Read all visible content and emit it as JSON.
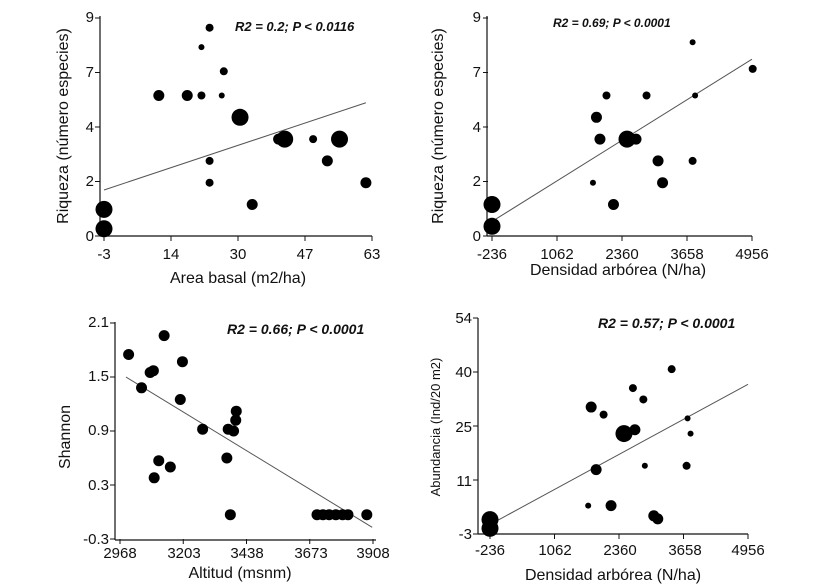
{
  "chart_data": [
    {
      "type": "scatter",
      "xlabel": "Area basal (m2/ha)",
      "ylabel": "Riqueza (número especies)",
      "annotation": "R2 = 0.2; P < 0.0116",
      "xlim": [
        -3,
        63
      ],
      "ylim": [
        0,
        9
      ],
      "xticks": [
        "-3",
        "14",
        "30",
        "47",
        "63"
      ],
      "yticks": [
        "0",
        "2",
        "4",
        "7",
        "9"
      ],
      "points": [
        {
          "x": -3,
          "y": 0.3,
          "size": "large"
        },
        {
          "x": -3,
          "y": 1.1,
          "size": "large"
        },
        {
          "x": 10.5,
          "y": 5.8,
          "size": "medium"
        },
        {
          "x": 17.5,
          "y": 5.8,
          "size": "medium"
        },
        {
          "x": 21,
          "y": 5.8,
          "size": "small"
        },
        {
          "x": 21,
          "y": 7.8,
          "size": "tiny"
        },
        {
          "x": 23,
          "y": 8.6,
          "size": "small"
        },
        {
          "x": 23,
          "y": 3.1,
          "size": "small"
        },
        {
          "x": 23,
          "y": 2.2,
          "size": "small"
        },
        {
          "x": 26,
          "y": 5.8,
          "size": "tiny"
        },
        {
          "x": 26.5,
          "y": 6.8,
          "size": "small"
        },
        {
          "x": 30.5,
          "y": 4.9,
          "size": "large"
        },
        {
          "x": 33.5,
          "y": 1.3,
          "size": "medium"
        },
        {
          "x": 40,
          "y": 4.0,
          "size": "medium"
        },
        {
          "x": 41.5,
          "y": 4.0,
          "size": "large"
        },
        {
          "x": 48.5,
          "y": 4.0,
          "size": "small"
        },
        {
          "x": 52,
          "y": 3.1,
          "size": "medium"
        },
        {
          "x": 55,
          "y": 4.0,
          "size": "large"
        },
        {
          "x": 61.5,
          "y": 2.2,
          "size": "medium"
        }
      ],
      "fit_line": {
        "x": [
          -3,
          61.5
        ],
        "y": [
          1.9,
          5.5
        ]
      }
    },
    {
      "type": "scatter",
      "xlabel": "Densidad arbórea (N/ha)",
      "ylabel": "Riqueza (número especies)",
      "annotation": "R2 = 0.69; P < 0.0001",
      "xlim": [
        -236,
        4956
      ],
      "ylim": [
        0,
        9
      ],
      "xticks": [
        "-236",
        "1062",
        "2360",
        "3658",
        "4956"
      ],
      "yticks": [
        "0",
        "2",
        "4",
        "7",
        "9"
      ],
      "points": [
        {
          "x": -236,
          "y": 0.4,
          "size": "large"
        },
        {
          "x": -236,
          "y": 1.3,
          "size": "large"
        },
        {
          "x": 1780,
          "y": 2.2,
          "size": "tiny"
        },
        {
          "x": 1850,
          "y": 4.9,
          "size": "medium"
        },
        {
          "x": 1920,
          "y": 4.0,
          "size": "medium"
        },
        {
          "x": 2050,
          "y": 5.8,
          "size": "small"
        },
        {
          "x": 2190,
          "y": 1.3,
          "size": "medium"
        },
        {
          "x": 2460,
          "y": 4.0,
          "size": "large"
        },
        {
          "x": 2640,
          "y": 4.0,
          "size": "medium"
        },
        {
          "x": 2850,
          "y": 5.8,
          "size": "small"
        },
        {
          "x": 3080,
          "y": 3.1,
          "size": "medium"
        },
        {
          "x": 3170,
          "y": 2.2,
          "size": "medium"
        },
        {
          "x": 3770,
          "y": 8.0,
          "size": "tiny"
        },
        {
          "x": 3770,
          "y": 3.1,
          "size": "small"
        },
        {
          "x": 3820,
          "y": 5.8,
          "size": "tiny"
        },
        {
          "x": 4970,
          "y": 6.9,
          "size": "small"
        }
      ],
      "fit_line": {
        "x": [
          -236,
          4956
        ],
        "y": [
          0.6,
          7.3
        ]
      }
    },
    {
      "type": "scatter",
      "xlabel": "Altitud (msnm)",
      "ylabel": "Shannon",
      "annotation": "R2 = 0.66; P < 0.0001",
      "xlim": [
        2968,
        3908
      ],
      "ylim": [
        -0.3,
        2.1
      ],
      "xticks": [
        "2968",
        "3203",
        "3438",
        "3673",
        "3908"
      ],
      "yticks": [
        "-0.3",
        "0.3",
        "0.9",
        "1.5",
        "2.1"
      ],
      "points": [
        {
          "x": 3000,
          "y": 1.75,
          "size": "medium"
        },
        {
          "x": 3048,
          "y": 1.38,
          "size": "medium"
        },
        {
          "x": 3080,
          "y": 1.55,
          "size": "medium"
        },
        {
          "x": 3092,
          "y": 1.57,
          "size": "medium"
        },
        {
          "x": 3095,
          "y": 0.38,
          "size": "medium"
        },
        {
          "x": 3112,
          "y": 0.57,
          "size": "medium"
        },
        {
          "x": 3132,
          "y": 1.96,
          "size": "medium"
        },
        {
          "x": 3155,
          "y": 0.5,
          "size": "medium"
        },
        {
          "x": 3192,
          "y": 1.25,
          "size": "medium"
        },
        {
          "x": 3200,
          "y": 1.67,
          "size": "medium"
        },
        {
          "x": 3275,
          "y": 0.92,
          "size": "medium"
        },
        {
          "x": 3365,
          "y": 0.6,
          "size": "medium"
        },
        {
          "x": 3370,
          "y": 0.92,
          "size": "medium"
        },
        {
          "x": 3378,
          "y": -0.03,
          "size": "medium"
        },
        {
          "x": 3390,
          "y": 0.9,
          "size": "medium"
        },
        {
          "x": 3398,
          "y": 1.02,
          "size": "medium"
        },
        {
          "x": 3400,
          "y": 1.12,
          "size": "medium"
        },
        {
          "x": 3700,
          "y": -0.03,
          "size": "medium"
        },
        {
          "x": 3722,
          "y": -0.03,
          "size": "medium"
        },
        {
          "x": 3745,
          "y": -0.03,
          "size": "medium"
        },
        {
          "x": 3770,
          "y": -0.03,
          "size": "medium"
        },
        {
          "x": 3795,
          "y": -0.03,
          "size": "medium"
        },
        {
          "x": 3815,
          "y": -0.03,
          "size": "medium"
        },
        {
          "x": 3885,
          "y": -0.03,
          "size": "medium"
        }
      ],
      "fit_line": {
        "x": [
          2990,
          3905
        ],
        "y": [
          1.5,
          -0.17
        ]
      }
    },
    {
      "type": "scatter",
      "xlabel": "Densidad arbórea (N/ha)",
      "ylabel": "Abundancia (Ind/20 m2)",
      "annotation": "R2 = 0.57; P < 0.0001",
      "xlim": [
        -236,
        4956
      ],
      "ylim": [
        -3,
        54
      ],
      "xticks": [
        "-236",
        "1062",
        "2360",
        "3658",
        "4956"
      ],
      "yticks": [
        "-3",
        "11",
        "25",
        "40",
        "54"
      ],
      "points": [
        {
          "x": -236,
          "y": -1.5,
          "size": "large"
        },
        {
          "x": -236,
          "y": 0.8,
          "size": "large"
        },
        {
          "x": 1740,
          "y": 4.5,
          "size": "tiny"
        },
        {
          "x": 1800,
          "y": 30.5,
          "size": "medium"
        },
        {
          "x": 1900,
          "y": 14,
          "size": "medium"
        },
        {
          "x": 2050,
          "y": 28.5,
          "size": "small"
        },
        {
          "x": 2200,
          "y": 4.5,
          "size": "medium"
        },
        {
          "x": 2460,
          "y": 23.5,
          "size": "large"
        },
        {
          "x": 2640,
          "y": 35.5,
          "size": "small"
        },
        {
          "x": 2680,
          "y": 24.5,
          "size": "medium"
        },
        {
          "x": 2850,
          "y": 32.5,
          "size": "small"
        },
        {
          "x": 2880,
          "y": 15,
          "size": "tiny"
        },
        {
          "x": 3060,
          "y": 1.8,
          "size": "medium"
        },
        {
          "x": 3140,
          "y": 1.0,
          "size": "medium"
        },
        {
          "x": 3420,
          "y": 40.5,
          "size": "small"
        },
        {
          "x": 3720,
          "y": 15,
          "size": "small"
        },
        {
          "x": 3740,
          "y": 27.5,
          "size": "tiny"
        },
        {
          "x": 3800,
          "y": 23.5,
          "size": "tiny"
        }
      ],
      "fit_line": {
        "x": [
          -236,
          4956
        ],
        "y": [
          -0.5,
          36.5
        ]
      }
    }
  ]
}
